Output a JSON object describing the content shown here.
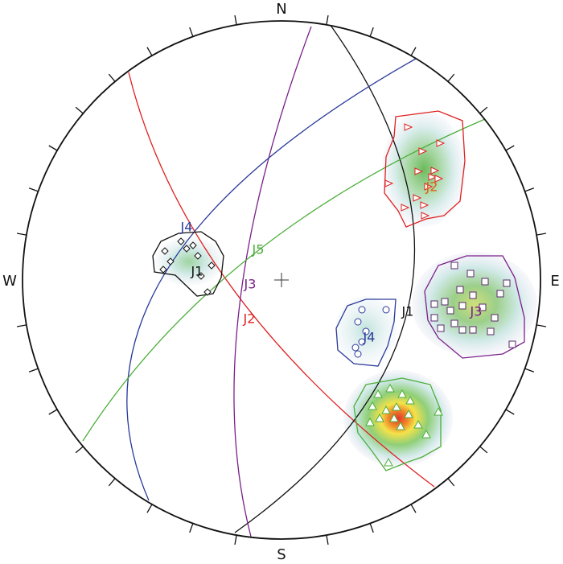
{
  "compass": {
    "north": "N",
    "east": "E",
    "south": "S",
    "west": "W"
  },
  "cluster_labels": [
    "J1",
    "J2",
    "J3",
    "J4"
  ],
  "plane_labels": [
    "J4",
    "J5",
    "J3",
    "J2",
    "J1"
  ]
}
